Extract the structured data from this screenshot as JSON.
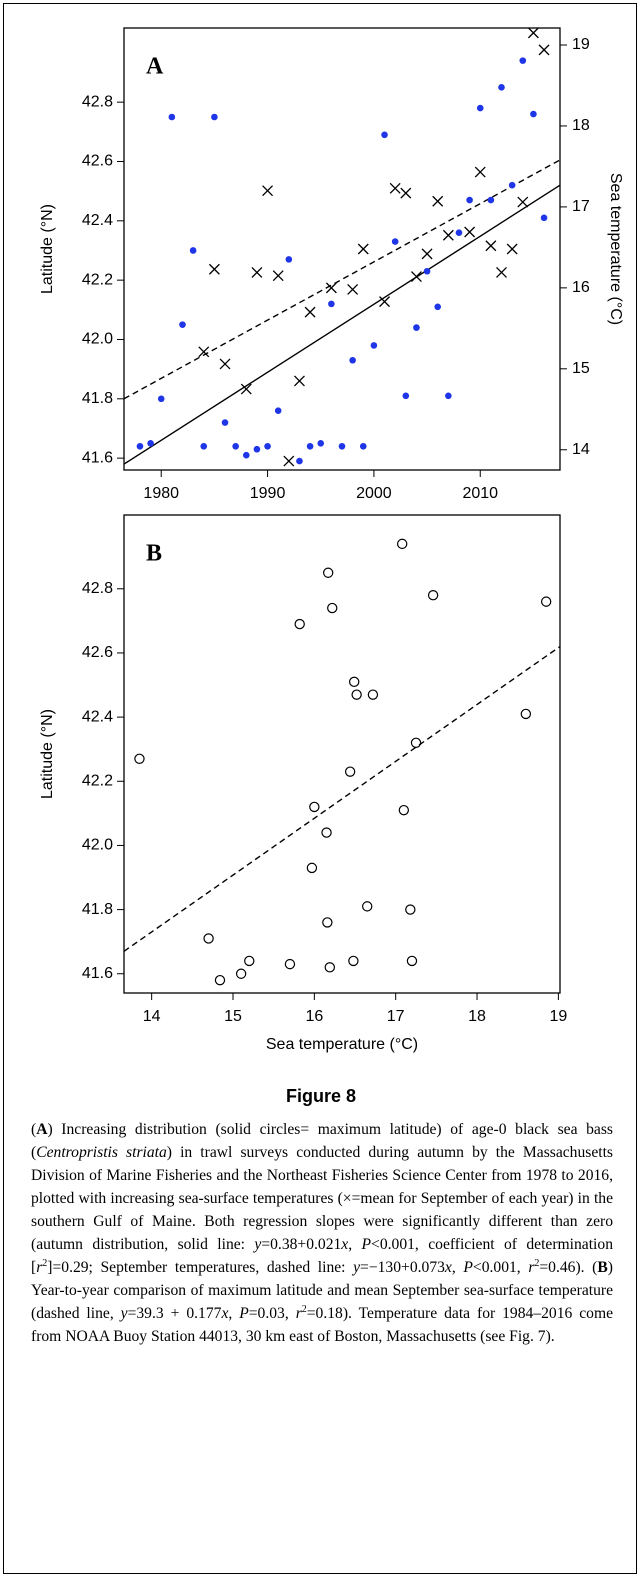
{
  "chart_data": [
    {
      "type": "scatter",
      "panel_label": "A",
      "ylabel": "Latitude (°N)",
      "y2label": "Sea temperature (°C)",
      "xlim": [
        1976.5,
        2017.5
      ],
      "xticks": [
        1980,
        1990,
        2000,
        2010
      ],
      "ylim": [
        41.56,
        43.05
      ],
      "yticks": [
        41.6,
        41.8,
        {
          "value": 42,
          "label": "42.0"
        },
        42.2,
        42.4,
        42.6,
        42.8
      ],
      "y2lim": [
        13.75,
        19.21
      ],
      "y2ticks": [
        14,
        15,
        16,
        17,
        18,
        19
      ],
      "series": [
        {
          "marker": "dot",
          "color": "#1f35e8",
          "axis": "y",
          "x": [
            1978,
            1979,
            1980,
            1981,
            1982,
            1983,
            1984,
            1985,
            1986,
            1987,
            1988,
            1989,
            1990,
            1991,
            1992,
            1993,
            1994,
            1995,
            1996,
            1997,
            1998,
            1999,
            2000,
            2001,
            2002,
            2003,
            2004,
            2005,
            2006,
            2007,
            2008,
            2009,
            2010,
            2011,
            2012,
            2013,
            2014,
            2015,
            2016
          ],
          "values": [
            41.64,
            41.65,
            41.8,
            42.75,
            42.05,
            42.3,
            41.64,
            42.75,
            41.72,
            41.64,
            41.61,
            41.63,
            41.64,
            41.76,
            42.27,
            41.59,
            41.64,
            41.65,
            42.12,
            41.64,
            41.93,
            41.64,
            41.98,
            42.69,
            42.33,
            41.81,
            42.04,
            42.23,
            42.11,
            41.81,
            42.36,
            42.47,
            42.78,
            42.47,
            42.85,
            42.52,
            42.94,
            42.76,
            42.41
          ]
        },
        {
          "marker": "cross",
          "color": "#000000",
          "axis": "y2",
          "x": [
            1984,
            1985,
            1986,
            1988,
            1989,
            1990,
            1991,
            1992,
            1993,
            1994,
            1996,
            1998,
            1999,
            2001,
            2002,
            2003,
            2004,
            2005,
            2006,
            2007,
            2009,
            2010,
            2011,
            2012,
            2013,
            2014,
            2015,
            2016
          ],
          "values": [
            15.21,
            16.23,
            15.06,
            14.75,
            16.19,
            17.2,
            16.15,
            13.86,
            14.85,
            15.7,
            16.0,
            15.98,
            16.48,
            15.83,
            17.23,
            17.17,
            16.14,
            16.42,
            17.07,
            16.65,
            16.69,
            17.43,
            16.52,
            16.19,
            16.48,
            17.06,
            19.15,
            18.94
          ]
        }
      ],
      "lines": [
        {
          "style": "solid",
          "axis": "y",
          "x": [
            1976.5,
            2017.5
          ],
          "values": [
            41.58,
            42.52
          ]
        },
        {
          "style": "dashed",
          "axis": "y2",
          "x": [
            1976.5,
            2017.5
          ],
          "values": [
            14.63,
            17.58
          ]
        }
      ]
    },
    {
      "type": "scatter",
      "panel_label": "B",
      "ylabel": "Latitude (°N)",
      "xlabel": "Sea temperature (°C)",
      "xlim": [
        13.66,
        19.02
      ],
      "xticks": [
        14,
        15,
        16,
        17,
        18,
        19
      ],
      "ylim": [
        41.54,
        43.03
      ],
      "yticks": [
        41.6,
        41.8,
        {
          "value": 42,
          "label": "42.0"
        },
        42.2,
        42.4,
        42.6,
        42.8
      ],
      "series": [
        {
          "marker": "circle",
          "color": "#000000",
          "axis": "y",
          "x": [
            13.85,
            14.7,
            14.84,
            15.1,
            15.2,
            15.7,
            15.82,
            16.0,
            15.97,
            16.17,
            16.22,
            16.15,
            16.16,
            16.19,
            16.49,
            16.52,
            16.44,
            16.48,
            16.65,
            16.72,
            17.1,
            17.18,
            17.2,
            17.25,
            17.08,
            17.46,
            18.6,
            18.85
          ],
          "values": [
            42.27,
            41.71,
            41.58,
            41.6,
            41.64,
            41.63,
            42.69,
            42.12,
            41.93,
            42.85,
            42.74,
            42.04,
            41.76,
            41.62,
            42.51,
            42.47,
            42.23,
            41.64,
            41.81,
            42.47,
            42.11,
            41.8,
            41.64,
            42.32,
            42.94,
            42.78,
            42.41,
            42.76
          ]
        }
      ],
      "lines": [
        {
          "style": "dashed",
          "axis": "y",
          "x": [
            13.66,
            19.02
          ],
          "values": [
            41.67,
            42.62
          ]
        }
      ]
    }
  ],
  "figure_label": "Figure 8",
  "caption": [
    {
      "text": "("
    },
    {
      "text": "A",
      "style": "bold"
    },
    {
      "text": ") Increasing distribution (solid circles= maximum latitude) of age-0 black sea bass ("
    },
    {
      "text": "Centropristis striata",
      "style": "italic"
    },
    {
      "text": ") in trawl surveys conducted during autumn by the Massachusetts Division of Marine Fisheries and the Northeast Fisheries Science Center from 1978 to 2016, plotted with increasing sea-surface temperatures (×=mean for September of each year) in the southern Gulf of Maine. Both regression slopes were significantly different than zero (autumn distribution, solid line: "
    },
    {
      "text": "y",
      "style": "italic"
    },
    {
      "text": "=0.38+0.021"
    },
    {
      "text": "x",
      "style": "italic"
    },
    {
      "text": ", "
    },
    {
      "text": "P",
      "style": "italic"
    },
    {
      "text": "<0.001, coefficient of determination ["
    },
    {
      "text": "r",
      "style": "italic"
    },
    {
      "text": "2",
      "style": "sup"
    },
    {
      "text": "]=0.29; September temperatures, dashed line: "
    },
    {
      "text": "y",
      "style": "italic"
    },
    {
      "text": "=−130+0.073"
    },
    {
      "text": "x",
      "style": "italic"
    },
    {
      "text": ", "
    },
    {
      "text": "P",
      "style": "italic"
    },
    {
      "text": "<0.001, "
    },
    {
      "text": "r",
      "style": "italic"
    },
    {
      "text": "2",
      "style": "sup"
    },
    {
      "text": "=0.46). ("
    },
    {
      "text": "B",
      "style": "bold"
    },
    {
      "text": ") Year-to-year comparison of maximum latitude and mean September sea-surface temperature (dashed line, "
    },
    {
      "text": "y",
      "style": "italic"
    },
    {
      "text": "=39.3 + 0.177"
    },
    {
      "text": "x",
      "style": "italic"
    },
    {
      "text": ", "
    },
    {
      "text": "P",
      "style": "italic"
    },
    {
      "text": "=0.03, "
    },
    {
      "text": "r",
      "style": "italic"
    },
    {
      "text": "2",
      "style": "sup"
    },
    {
      "text": "=0.18). Temperature data for 1984–2016 come from NOAA Buoy Station 44013, 30 km east of Boston, Massachusetts (see Fig. 7)."
    }
  ]
}
